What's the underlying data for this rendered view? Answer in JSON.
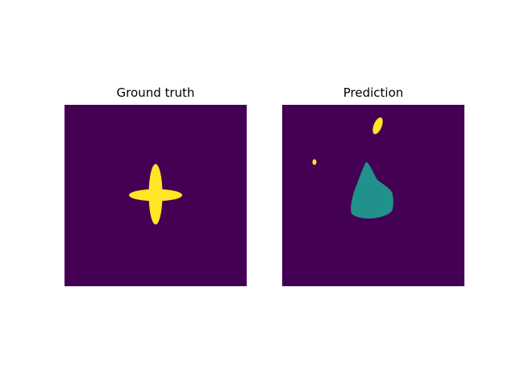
{
  "figure": {
    "panels": [
      {
        "title": "Ground truth"
      },
      {
        "title": "Prediction"
      }
    ]
  },
  "colors": {
    "background": "#440154",
    "class_1": "#fde725",
    "class_2": "#21918c"
  }
}
